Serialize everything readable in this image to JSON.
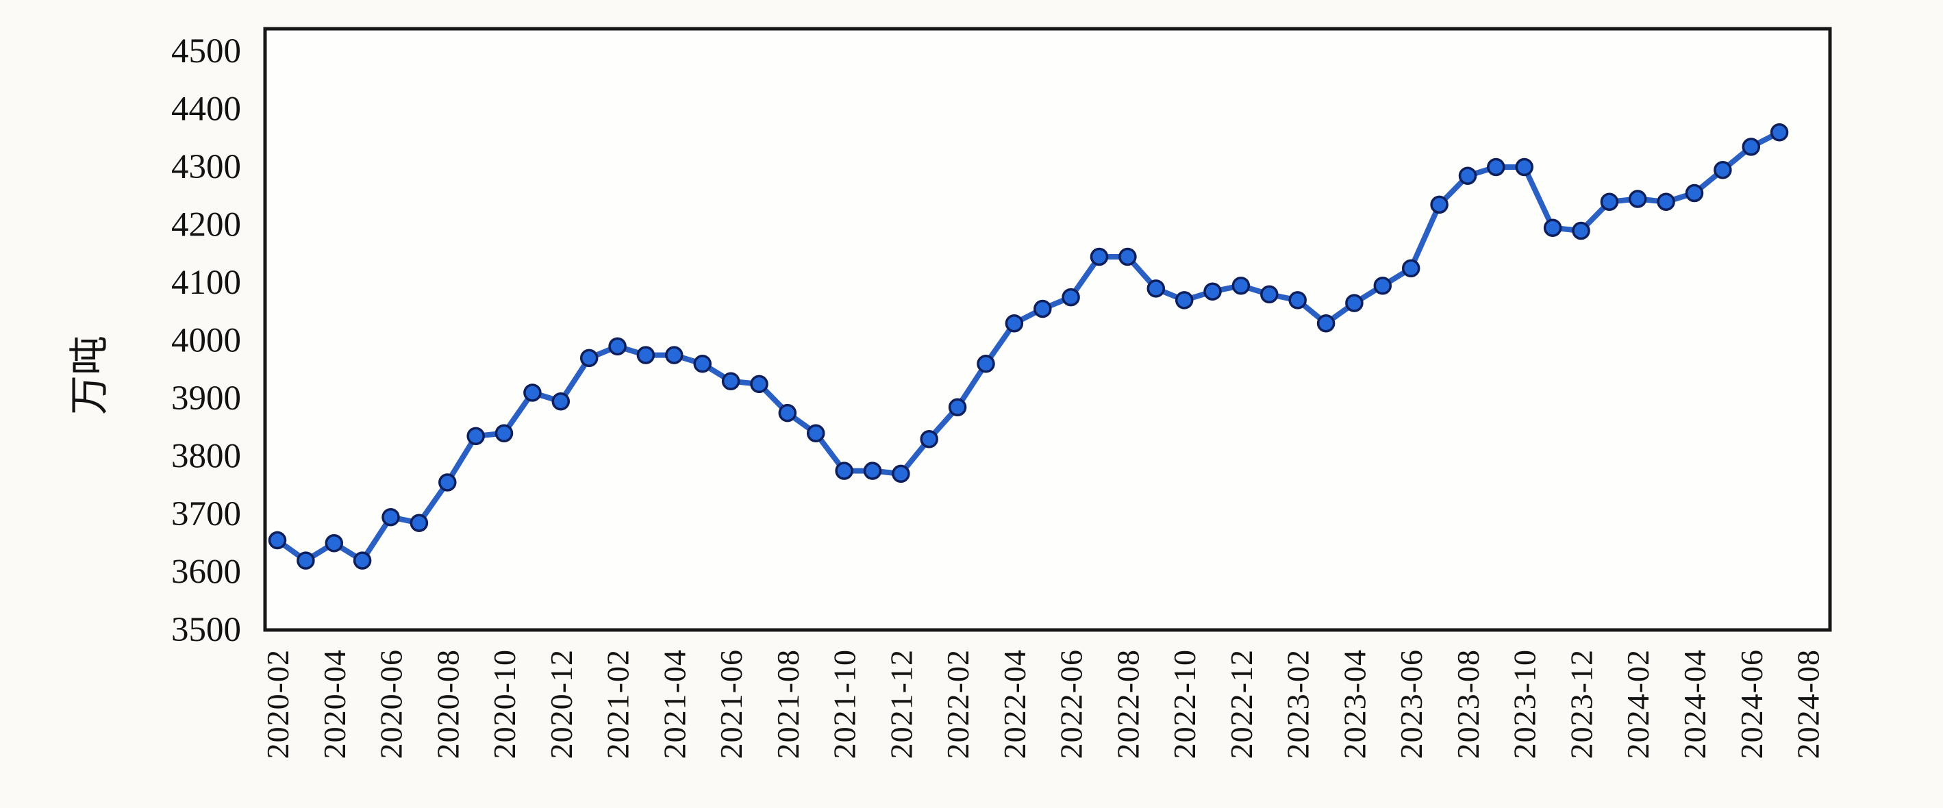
{
  "chart_data": {
    "type": "line",
    "title": "",
    "xlabel": "",
    "ylabel": "万吨",
    "x": [
      "2020-02",
      "2020-03",
      "2020-04",
      "2020-05",
      "2020-06",
      "2020-07",
      "2020-08",
      "2020-09",
      "2020-10",
      "2020-11",
      "2020-12",
      "2021-01",
      "2021-02",
      "2021-03",
      "2021-04",
      "2021-05",
      "2021-06",
      "2021-07",
      "2021-08",
      "2021-09",
      "2021-10",
      "2021-11",
      "2021-12",
      "2022-01",
      "2022-02",
      "2022-03",
      "2022-04",
      "2022-05",
      "2022-06",
      "2022-07",
      "2022-08",
      "2022-09",
      "2022-10",
      "2022-11",
      "2022-12",
      "2023-01",
      "2023-02",
      "2023-03",
      "2023-04",
      "2023-05",
      "2023-06",
      "2023-07",
      "2023-08",
      "2023-09",
      "2023-10",
      "2023-11",
      "2023-12",
      "2024-01",
      "2024-02",
      "2024-03",
      "2024-04",
      "2024-05",
      "2024-06",
      "2024-07"
    ],
    "values": [
      3655,
      3620,
      3650,
      3620,
      3695,
      3685,
      3755,
      3835,
      3840,
      3910,
      3895,
      3970,
      3990,
      3975,
      3975,
      3960,
      3930,
      3925,
      3875,
      3840,
      3775,
      3775,
      3770,
      3830,
      3885,
      3960,
      4030,
      4055,
      4075,
      4145,
      4145,
      4090,
      4070,
      4085,
      4095,
      4080,
      4070,
      4030,
      4065,
      4095,
      4125,
      4235,
      4285,
      4300,
      4300,
      4195,
      4190,
      4240,
      4245,
      4240,
      4255,
      4295,
      4335,
      4360
    ],
    "x_tick_labels": [
      "2020-02",
      "2020-04",
      "2020-06",
      "2020-08",
      "2020-10",
      "2020-12",
      "2021-02",
      "2021-04",
      "2021-06",
      "2021-08",
      "2021-10",
      "2021-12",
      "2022-02",
      "2022-04",
      "2022-06",
      "2022-08",
      "2022-10",
      "2022-12",
      "2023-02",
      "2023-04",
      "2023-06",
      "2023-08",
      "2023-10",
      "2023-12",
      "2024-02",
      "2024-04",
      "2024-06",
      "2024-08"
    ],
    "y_ticks": [
      3500,
      3600,
      3700,
      3800,
      3900,
      4000,
      4100,
      4200,
      4300,
      4400,
      4500
    ],
    "ylim": [
      3500,
      4500
    ],
    "x_axis_last_category": "2024-08",
    "grid": "off",
    "legend": "none",
    "colors": {
      "background": "#fbfaf6",
      "plot_background": "#fefefd",
      "plot_border": "#161616",
      "line": "#2a5fc4",
      "marker_fill": "#2468d9",
      "marker_stroke": "#0f1f5c",
      "text": "#121212"
    }
  }
}
